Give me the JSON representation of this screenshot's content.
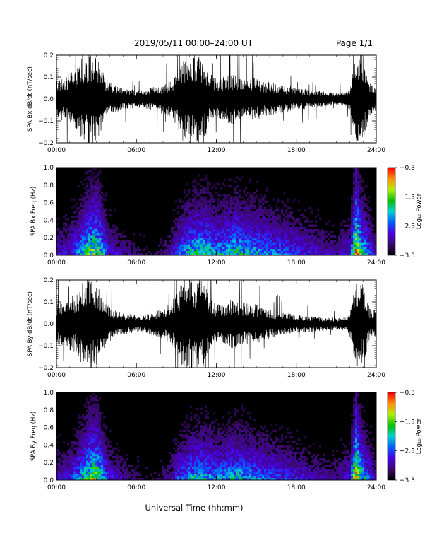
{
  "header": {
    "title": "2019/05/11  00:00–24:00 UT",
    "page": "Page 1/1"
  },
  "xlabel": "Universal Time (hh:mm)",
  "x_ticks": [
    "00:00",
    "06:00",
    "12:00",
    "18:00",
    "24:00"
  ],
  "chart_data": [
    {
      "type": "line",
      "ylabel": "SPA Bx dB/dt (nT/sec)",
      "xlim": [
        0,
        24
      ],
      "ylim": [
        -0.2,
        0.2
      ],
      "y_ticks": [
        -0.2,
        -0.1,
        0.0,
        0.1,
        0.2
      ],
      "y_tick_labels": [
        "−0.2",
        "−0.1",
        "0.0",
        "0.1",
        "0.2"
      ],
      "x_ticks": [
        "00:00",
        "06:00",
        "12:00",
        "18:00",
        "24:00"
      ],
      "series": [
        {
          "x": [
            0,
            0.5,
            1,
            1.5,
            2,
            2.5,
            3,
            3.5,
            4,
            4.5,
            5,
            5.5,
            6,
            6.5,
            7,
            7.5,
            8,
            8.5,
            9,
            9.5,
            10,
            10.5,
            11,
            11.5,
            12,
            12.5,
            13,
            13.5,
            14,
            14.5,
            15,
            15.5,
            16,
            16.5,
            17,
            17.5,
            18,
            18.5,
            19,
            19.5,
            20,
            20.5,
            21,
            21.5,
            22,
            22.5,
            23,
            23.5,
            24
          ],
          "amplitude": [
            0.09,
            0.1,
            0.12,
            0.14,
            0.2,
            0.2,
            0.2,
            0.12,
            0.08,
            0.06,
            0.05,
            0.045,
            0.04,
            0.04,
            0.05,
            0.06,
            0.07,
            0.08,
            0.12,
            0.2,
            0.2,
            0.2,
            0.2,
            0.12,
            0.09,
            0.1,
            0.12,
            0.11,
            0.1,
            0.09,
            0.1,
            0.08,
            0.08,
            0.07,
            0.06,
            0.06,
            0.05,
            0.05,
            0.04,
            0.04,
            0.04,
            0.03,
            0.03,
            0.03,
            0.05,
            0.2,
            0.2,
            0.08,
            0.06
          ]
        }
      ]
    },
    {
      "type": "heatmap",
      "ylabel": "SPA Bx Freq (Hz)",
      "xlim": [
        0,
        24
      ],
      "ylim": [
        0,
        1.0
      ],
      "y_ticks": [
        0.0,
        0.2,
        0.4,
        0.6,
        0.8,
        1.0
      ],
      "y_tick_labels": [
        "0.0",
        "0.2",
        "0.4",
        "0.6",
        "0.8",
        "1.0"
      ],
      "x_ticks": [
        "00:00",
        "06:00",
        "12:00",
        "18:00",
        "24:00"
      ],
      "colorbar": {
        "label": "Log₁₀ Power",
        "range": [
          -3.3,
          -0.3
        ],
        "ticks": [
          "−0.3",
          "−1.3",
          "−2.3",
          "−3.3"
        ]
      },
      "activity_hours": [
        0,
        1,
        2,
        2.5,
        3,
        4,
        5,
        6,
        7,
        8,
        8.5,
        9,
        10,
        11,
        12,
        13,
        13.5,
        14,
        15,
        16,
        17,
        18,
        19,
        20,
        21,
        22,
        22.5,
        23,
        24
      ],
      "activity_level": [
        0.25,
        0.3,
        0.55,
        0.7,
        0.75,
        0.3,
        0.2,
        0.15,
        0.1,
        0.15,
        0.2,
        0.35,
        0.55,
        0.6,
        0.5,
        0.55,
        0.6,
        0.55,
        0.5,
        0.45,
        0.4,
        0.35,
        0.3,
        0.25,
        0.2,
        0.3,
        0.95,
        0.6,
        0.2
      ]
    },
    {
      "type": "line",
      "ylabel": "SPA By dB/dt (nT/sec)",
      "xlim": [
        0,
        24
      ],
      "ylim": [
        -0.2,
        0.2
      ],
      "y_ticks": [
        -0.2,
        -0.1,
        0.0,
        0.1,
        0.2
      ],
      "y_tick_labels": [
        "−0.2",
        "−0.1",
        "0.0",
        "0.1",
        "0.2"
      ],
      "x_ticks": [
        "00:00",
        "06:00",
        "12:00",
        "18:00",
        "24:00"
      ],
      "series": [
        {
          "x": [
            0,
            0.5,
            1,
            1.5,
            2,
            2.5,
            3,
            3.5,
            4,
            4.5,
            5,
            5.5,
            6,
            6.5,
            7,
            7.5,
            8,
            8.5,
            9,
            9.5,
            10,
            10.5,
            11,
            11.5,
            12,
            12.5,
            13,
            13.5,
            14,
            14.5,
            15,
            15.5,
            16,
            16.5,
            17,
            17.5,
            18,
            18.5,
            19,
            19.5,
            20,
            20.5,
            21,
            21.5,
            22,
            22.5,
            23,
            23.5,
            24
          ],
          "amplitude": [
            0.09,
            0.1,
            0.12,
            0.14,
            0.2,
            0.2,
            0.2,
            0.12,
            0.08,
            0.06,
            0.05,
            0.045,
            0.04,
            0.035,
            0.05,
            0.06,
            0.07,
            0.09,
            0.14,
            0.2,
            0.2,
            0.2,
            0.2,
            0.12,
            0.09,
            0.1,
            0.11,
            0.11,
            0.1,
            0.09,
            0.09,
            0.08,
            0.07,
            0.06,
            0.05,
            0.05,
            0.04,
            0.04,
            0.04,
            0.035,
            0.03,
            0.03,
            0.03,
            0.03,
            0.05,
            0.2,
            0.2,
            0.07,
            0.06
          ]
        }
      ]
    },
    {
      "type": "heatmap",
      "ylabel": "SPA By Freq (Hz)",
      "xlim": [
        0,
        24
      ],
      "ylim": [
        0,
        1.0
      ],
      "y_ticks": [
        0.0,
        0.2,
        0.4,
        0.6,
        0.8,
        1.0
      ],
      "y_tick_labels": [
        "0.0",
        "0.2",
        "0.4",
        "0.6",
        "0.8",
        "1.0"
      ],
      "x_ticks": [
        "00:00",
        "06:00",
        "12:00",
        "18:00",
        "24:00"
      ],
      "colorbar": {
        "label": "Log₁₀ Power",
        "range": [
          -3.3,
          -0.3
        ],
        "ticks": [
          "−0.3",
          "−1.3",
          "−2.3",
          "−3.3"
        ]
      },
      "activity_hours": [
        0,
        1,
        2,
        2.5,
        3,
        4,
        5,
        6,
        7,
        8,
        8.5,
        9,
        10,
        11,
        12,
        13,
        13.5,
        14,
        15,
        16,
        17,
        18,
        19,
        20,
        21,
        22,
        22.5,
        23,
        24
      ],
      "activity_level": [
        0.25,
        0.3,
        0.55,
        0.7,
        0.75,
        0.3,
        0.2,
        0.15,
        0.1,
        0.15,
        0.2,
        0.35,
        0.5,
        0.55,
        0.45,
        0.5,
        0.55,
        0.5,
        0.45,
        0.4,
        0.35,
        0.3,
        0.25,
        0.2,
        0.2,
        0.3,
        0.95,
        0.55,
        0.2
      ]
    }
  ]
}
